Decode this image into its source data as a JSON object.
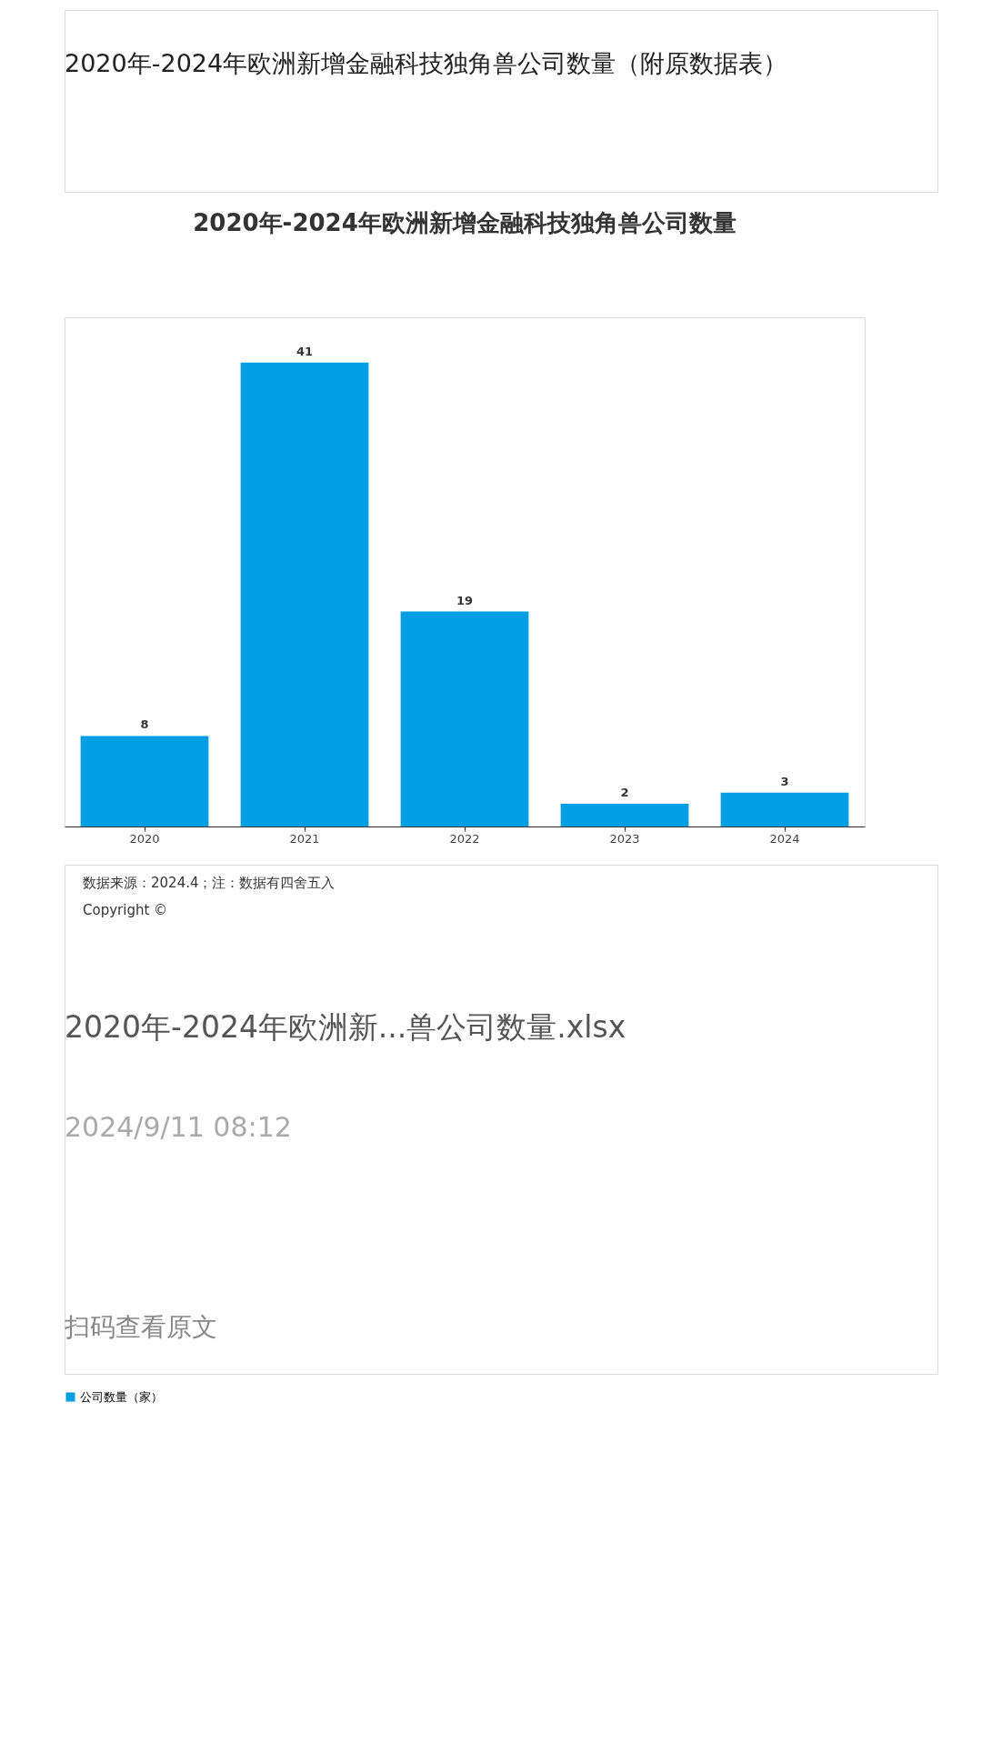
{
  "chart_data": {
    "type": "bar",
    "title": "2020年-2024年欧洲新增金融科技独角兽公司数量",
    "categories": [
      "2020",
      "2021",
      "2022",
      "2023",
      "2024"
    ],
    "series": [
      {
        "name": "公司数量（家）",
        "color": "#009fe3",
        "values": [
          8,
          41,
          19,
          2,
          3
        ]
      }
    ],
    "data_labels": true,
    "legend": "bottom",
    "grid": false,
    "tick_labels": "x",
    "annotations": [
      "2020年-2024年欧洲新增金融科技独角兽公司数量（附原数据表）",
      "数据来源：2024.4；注：数据有四舍五入",
      "Copyright ©",
      "2020年-2024年欧洲新...兽公司数量.xlsx",
      "2024/9/11 08:12",
      "扫码查看原文"
    ]
  }
}
